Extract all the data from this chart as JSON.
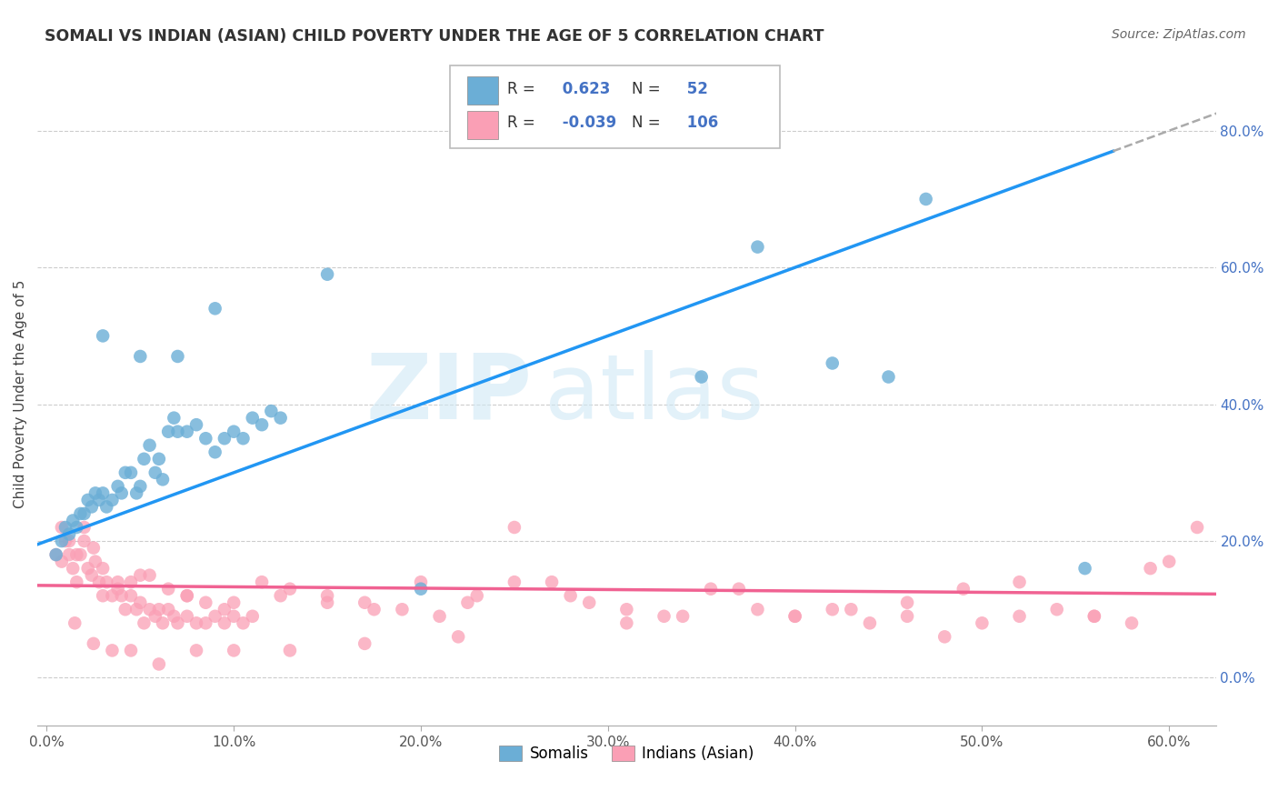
{
  "title": "SOMALI VS INDIAN (ASIAN) CHILD POVERTY UNDER THE AGE OF 5 CORRELATION CHART",
  "source": "Source: ZipAtlas.com",
  "ylabel": "Child Poverty Under the Age of 5",
  "xlabel_ticks": [
    0.0,
    0.1,
    0.2,
    0.3,
    0.4,
    0.5,
    0.6
  ],
  "xlabel_labels": [
    "0.0%",
    "10.0%",
    "20.0%",
    "30.0%",
    "40.0%",
    "50.0%",
    "60.0%"
  ],
  "ylabel_ticks": [
    0.0,
    0.2,
    0.4,
    0.6,
    0.8
  ],
  "ylabel_labels": [
    "0.0%",
    "20.0%",
    "40.0%",
    "60.0%",
    "80.0%"
  ],
  "xlim": [
    -0.005,
    0.625
  ],
  "ylim": [
    -0.07,
    0.9
  ],
  "somali_color": "#6baed6",
  "indian_color": "#fa9fb5",
  "somali_R": 0.623,
  "somali_N": 52,
  "indian_R": -0.039,
  "indian_N": 106,
  "somali_line_color": "#2196F3",
  "indian_line_color": "#F06292",
  "watermark_zip": "ZIP",
  "watermark_atlas": "atlas",
  "legend_somalis": "Somalis",
  "legend_indians": "Indians (Asian)",
  "blue_label_color": "#4472C4",
  "somali_x": [
    0.005,
    0.008,
    0.01,
    0.012,
    0.014,
    0.016,
    0.018,
    0.02,
    0.022,
    0.024,
    0.026,
    0.028,
    0.03,
    0.032,
    0.035,
    0.038,
    0.04,
    0.042,
    0.045,
    0.048,
    0.05,
    0.052,
    0.055,
    0.058,
    0.06,
    0.062,
    0.065,
    0.068,
    0.07,
    0.075,
    0.08,
    0.085,
    0.09,
    0.095,
    0.1,
    0.105,
    0.11,
    0.115,
    0.12,
    0.125,
    0.03,
    0.05,
    0.07,
    0.09,
    0.15,
    0.2,
    0.35,
    0.38,
    0.42,
    0.45,
    0.47,
    0.555
  ],
  "somali_y": [
    0.18,
    0.2,
    0.22,
    0.21,
    0.23,
    0.22,
    0.24,
    0.24,
    0.26,
    0.25,
    0.27,
    0.26,
    0.27,
    0.25,
    0.26,
    0.28,
    0.27,
    0.3,
    0.3,
    0.27,
    0.28,
    0.32,
    0.34,
    0.3,
    0.32,
    0.29,
    0.36,
    0.38,
    0.36,
    0.36,
    0.37,
    0.35,
    0.33,
    0.35,
    0.36,
    0.35,
    0.38,
    0.37,
    0.39,
    0.38,
    0.5,
    0.47,
    0.47,
    0.54,
    0.59,
    0.13,
    0.44,
    0.63,
    0.46,
    0.44,
    0.7,
    0.16
  ],
  "indian_x": [
    0.005,
    0.008,
    0.01,
    0.012,
    0.014,
    0.016,
    0.018,
    0.02,
    0.022,
    0.024,
    0.026,
    0.028,
    0.03,
    0.032,
    0.035,
    0.038,
    0.04,
    0.042,
    0.045,
    0.048,
    0.05,
    0.052,
    0.055,
    0.058,
    0.06,
    0.062,
    0.065,
    0.068,
    0.07,
    0.075,
    0.08,
    0.085,
    0.09,
    0.095,
    0.1,
    0.105,
    0.11,
    0.008,
    0.012,
    0.016,
    0.02,
    0.025,
    0.03,
    0.038,
    0.045,
    0.055,
    0.065,
    0.075,
    0.085,
    0.095,
    0.115,
    0.13,
    0.15,
    0.17,
    0.19,
    0.21,
    0.23,
    0.25,
    0.27,
    0.29,
    0.31,
    0.33,
    0.355,
    0.38,
    0.4,
    0.42,
    0.44,
    0.46,
    0.48,
    0.5,
    0.52,
    0.54,
    0.56,
    0.58,
    0.6,
    0.615,
    0.05,
    0.075,
    0.1,
    0.125,
    0.15,
    0.175,
    0.2,
    0.225,
    0.25,
    0.28,
    0.31,
    0.34,
    0.37,
    0.4,
    0.43,
    0.46,
    0.49,
    0.52,
    0.56,
    0.59,
    0.015,
    0.025,
    0.035,
    0.045,
    0.06,
    0.08,
    0.1,
    0.13,
    0.17,
    0.22
  ],
  "indian_y": [
    0.18,
    0.17,
    0.2,
    0.18,
    0.16,
    0.14,
    0.18,
    0.2,
    0.16,
    0.15,
    0.17,
    0.14,
    0.12,
    0.14,
    0.12,
    0.13,
    0.12,
    0.1,
    0.12,
    0.1,
    0.11,
    0.08,
    0.1,
    0.09,
    0.1,
    0.08,
    0.1,
    0.09,
    0.08,
    0.09,
    0.08,
    0.08,
    0.09,
    0.08,
    0.09,
    0.08,
    0.09,
    0.22,
    0.2,
    0.18,
    0.22,
    0.19,
    0.16,
    0.14,
    0.14,
    0.15,
    0.13,
    0.12,
    0.11,
    0.1,
    0.14,
    0.13,
    0.12,
    0.11,
    0.1,
    0.09,
    0.12,
    0.14,
    0.14,
    0.11,
    0.1,
    0.09,
    0.13,
    0.1,
    0.09,
    0.1,
    0.08,
    0.09,
    0.06,
    0.08,
    0.09,
    0.1,
    0.09,
    0.08,
    0.17,
    0.22,
    0.15,
    0.12,
    0.11,
    0.12,
    0.11,
    0.1,
    0.14,
    0.11,
    0.22,
    0.12,
    0.08,
    0.09,
    0.13,
    0.09,
    0.1,
    0.11,
    0.13,
    0.14,
    0.09,
    0.16,
    0.08,
    0.05,
    0.04,
    0.04,
    0.02,
    0.04,
    0.04,
    0.04,
    0.05,
    0.06
  ]
}
